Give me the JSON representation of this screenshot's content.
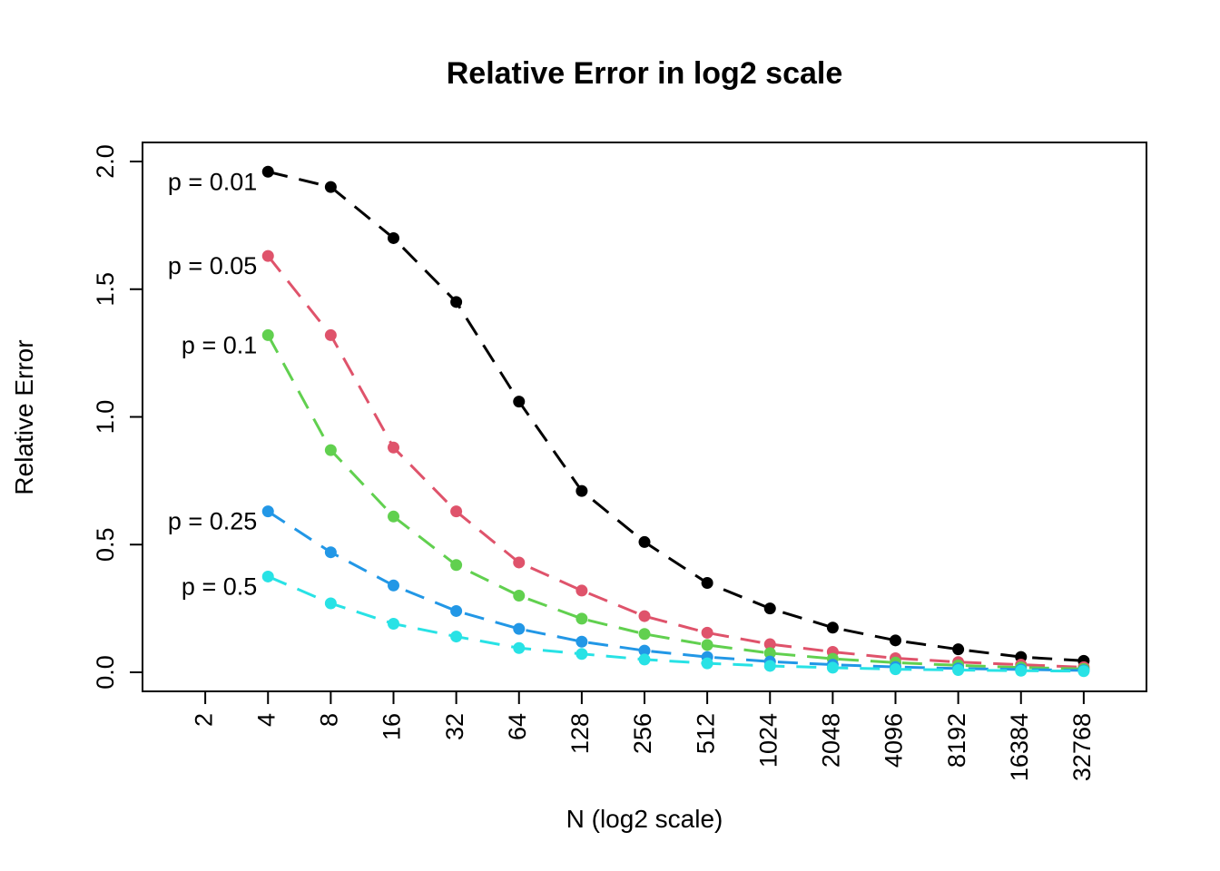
{
  "chart_data": {
    "type": "line",
    "title": "Relative Error in log2 scale",
    "xlabel": "N (log2 scale)",
    "ylabel": "Relative Error",
    "x_scale": "log2",
    "x_ticks": [
      "2",
      "4",
      "8",
      "16",
      "32",
      "64",
      "128",
      "256",
      "512",
      "1024",
      "2048",
      "4096",
      "8192",
      "16384",
      "32768"
    ],
    "y_ticks": [
      "0.0",
      "0.5",
      "1.0",
      "1.5",
      "2.0"
    ],
    "xlim": [
      1,
      65536
    ],
    "ylim": [
      0,
      2
    ],
    "grid": false,
    "x": [
      4,
      8,
      16,
      32,
      64,
      128,
      256,
      512,
      1024,
      2048,
      4096,
      8192,
      16384,
      32768
    ],
    "series": [
      {
        "name": "p = 0.01",
        "color": "#000000",
        "values": [
          1.96,
          1.9,
          1.7,
          1.45,
          1.06,
          0.71,
          0.51,
          0.35,
          0.25,
          0.175,
          0.125,
          0.09,
          0.06,
          0.045
        ]
      },
      {
        "name": "p = 0.05",
        "color": "#DF536B",
        "values": [
          1.63,
          1.32,
          0.88,
          0.63,
          0.43,
          0.32,
          0.22,
          0.155,
          0.11,
          0.08,
          0.055,
          0.04,
          0.03,
          0.02
        ]
      },
      {
        "name": "p = 0.1",
        "color": "#61D04F",
        "values": [
          1.32,
          0.87,
          0.61,
          0.42,
          0.3,
          0.21,
          0.15,
          0.107,
          0.075,
          0.053,
          0.038,
          0.027,
          0.019,
          0.013
        ]
      },
      {
        "name": "p = 0.25",
        "color": "#2297E6",
        "values": [
          0.63,
          0.47,
          0.34,
          0.24,
          0.17,
          0.12,
          0.085,
          0.06,
          0.042,
          0.03,
          0.021,
          0.015,
          0.011,
          0.0075
        ]
      },
      {
        "name": "p = 0.5",
        "color": "#28E2E5",
        "values": [
          0.375,
          0.27,
          0.19,
          0.14,
          0.095,
          0.072,
          0.05,
          0.035,
          0.025,
          0.018,
          0.012,
          0.009,
          0.006,
          0.0045
        ]
      }
    ]
  }
}
